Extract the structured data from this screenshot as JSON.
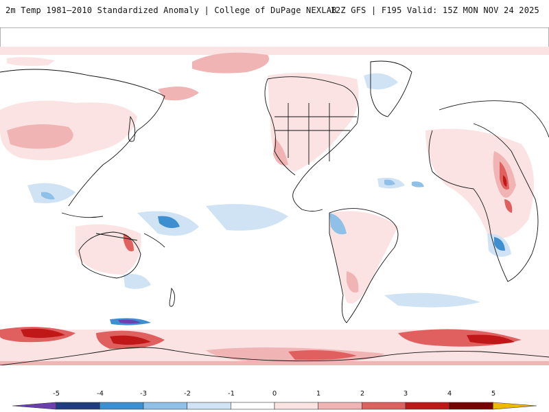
{
  "header": {
    "title_left": "2m Temp 1981–2010 Standardized Anomaly | College of DuPage NEXLAB",
    "title_right": "12Z GFS | F195 Valid: 15Z MON NOV 24 2025"
  },
  "legend": {
    "ticks": [
      "-5",
      "-4",
      "-3",
      "-2",
      "-1",
      "0",
      "1",
      "2",
      "3",
      "4",
      "5"
    ],
    "colors": [
      "#6a3fb0",
      "#1f3d7a",
      "#3e8fd0",
      "#8fc0e8",
      "#cfe3f4",
      "#ffffff",
      "#fbe3e3",
      "#f1b4b4",
      "#e0605f",
      "#c01818",
      "#7a0000",
      "#f0b800"
    ]
  },
  "map": {
    "projection": "global equirectangular, centered on Pacific",
    "field": "2m temperature standardized anomaly"
  }
}
